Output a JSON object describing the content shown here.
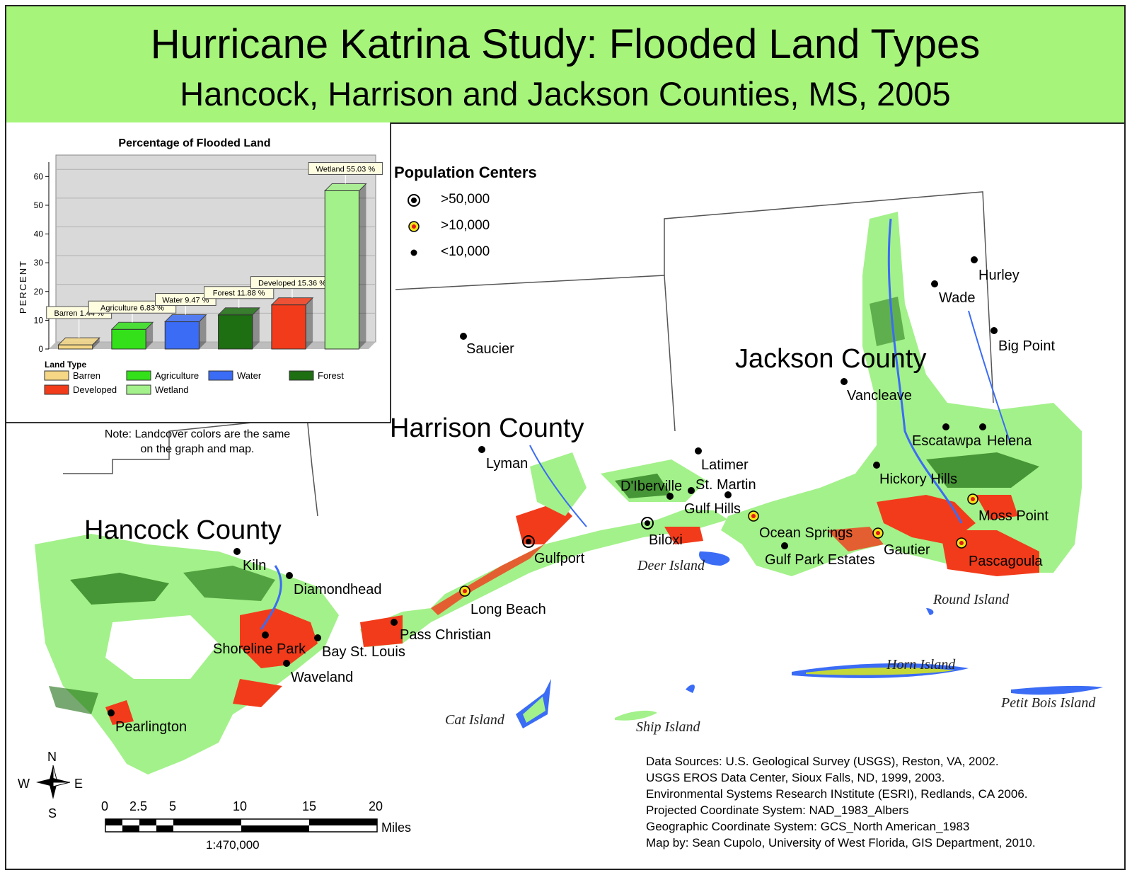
{
  "header": {
    "title": "Hurricane Katrina Study: Flooded Land Types",
    "subtitle": "Hancock, Harrison and Jackson Counties, MS, 2005"
  },
  "colors": {
    "header_bg": "#a6f57a",
    "barren": "#f5d785",
    "agriculture": "#33e01a",
    "water": "#3b6cf5",
    "forest": "#1e6e12",
    "developed": "#f23b1a",
    "wetland": "#a3f18a"
  },
  "chart_data": {
    "type": "bar",
    "title": "Percentage of Flooded Land",
    "ylabel": "PERCENT",
    "ylim": [
      0,
      65
    ],
    "yticks": [
      "0",
      "10",
      "20",
      "30",
      "40",
      "50",
      "60"
    ],
    "categories": [
      "Barren",
      "Agriculture",
      "Water",
      "Forest",
      "Developed",
      "Wetland"
    ],
    "values": [
      1.44,
      6.83,
      9.47,
      11.88,
      15.36,
      55.03
    ],
    "data_labels": [
      "Barren 1.44 %",
      "Agriculture 6.83 %",
      "Water 9.47 %",
      "Forest 11.88 %",
      "Developed 15.36 %",
      "Wetland 55.03 %"
    ],
    "legend_title": "Land Type",
    "legend": [
      "Barren",
      "Agriculture",
      "Water",
      "Forest",
      "Developed",
      "Wetland"
    ]
  },
  "note": {
    "line1": "Note: Landcover colors are the same",
    "line2": "on the graph and map."
  },
  "population_legend": {
    "title": "Population Centers",
    "items": [
      ">50,000",
      ">10,000",
      "<10,000"
    ]
  },
  "counties": {
    "hancock": "Hancock County",
    "harrison": "Harrison County",
    "jackson": "Jackson County"
  },
  "places": {
    "saucier": "Saucier",
    "lyman": "Lyman",
    "kiln": "Kiln",
    "diamondhead": "Diamondhead",
    "shoreline_park": "Shoreline Park",
    "bay_st_louis": "Bay St. Louis",
    "waveland": "Waveland",
    "pearlington": "Pearlington",
    "pass_christian": "Pass Christian",
    "long_beach": "Long Beach",
    "gulfport": "Gulfport",
    "biloxi": "Biloxi",
    "diberville": "D'Iberville",
    "st_martin": "St. Martin",
    "latimer": "Latimer",
    "gulf_hills": "Gulf Hills",
    "ocean_springs": "Ocean Springs",
    "gulf_park_estates": "Gulf Park Estates",
    "gautier": "Gautier",
    "pascagoula": "Pascagoula",
    "moss_point": "Moss Point",
    "hickory_hills": "Hickory Hills",
    "escatawpa": "Escatawpa",
    "helena": "Helena",
    "vancleave": "Vancleave",
    "wade": "Wade",
    "hurley": "Hurley",
    "big_point": "Big Point"
  },
  "islands": {
    "deer": "Deer Island",
    "round": "Round Island",
    "horn": "Horn Island",
    "petit_bois": "Petit Bois Island",
    "cat": "Cat Island",
    "ship": "Ship Island"
  },
  "compass": {
    "n": "N",
    "s": "S",
    "e": "E",
    "w": "W"
  },
  "scale_bar": {
    "ticks": [
      "0",
      "2.5",
      "5",
      "10",
      "15",
      "20"
    ],
    "unit": "Miles",
    "ratio": "1:470,000"
  },
  "sources": [
    "Data Sources: U.S. Geological Survey (USGS), Reston, VA, 2002.",
    "USGS EROS Data Center, Sioux Falls, ND, 1999, 2003.",
    "Environmental Systems Research INstitute (ESRI), Redlands, CA 2006.",
    "Projected Coordinate System: NAD_1983_Albers",
    "Geographic Coordinate System: GCS_North American_1983",
    "Map by: Sean Cupolo, University of West Florida, GIS Department, 2010."
  ]
}
